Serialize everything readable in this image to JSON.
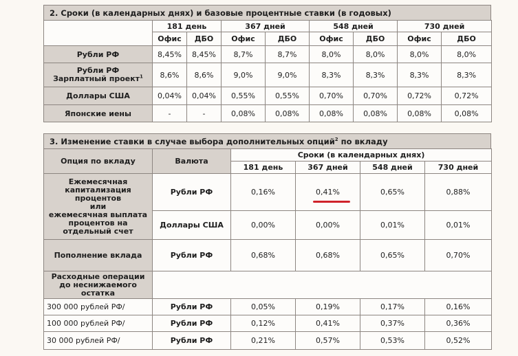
{
  "section2": {
    "title": "2. Сроки (в календарных днях) и базовые процентные ставки (в годовых)",
    "periods": [
      "181 день",
      "367 дней",
      "548 дней",
      "730 дней"
    ],
    "channels": [
      "Офис",
      "ДБО"
    ],
    "rows": [
      {
        "currency_lines": [
          "Рубли РФ"
        ],
        "rates": [
          "8,45%",
          "8,45%",
          "8,7%",
          "8,7%",
          "8,0%",
          "8,0%",
          "8,0%",
          "8,0%"
        ]
      },
      {
        "currency_lines": [
          "Рубли РФ",
          "Зарплатный проект"
        ],
        "footnote": "1",
        "rates": [
          "8,6%",
          "8,6%",
          "9,0%",
          "9,0%",
          "8,3%",
          "8,3%",
          "8,3%",
          "8,3%"
        ]
      },
      {
        "currency_lines": [
          "Доллары США"
        ],
        "rates": [
          "0,04%",
          "0,04%",
          "0,55%",
          "0,55%",
          "0,70%",
          "0,70%",
          "0,72%",
          "0,72%"
        ]
      },
      {
        "currency_lines": [
          "Японские иены"
        ],
        "rates": [
          "-",
          "-",
          "0,08%",
          "0,08%",
          "0,08%",
          "0,08%",
          "0,08%",
          "0,08%"
        ]
      }
    ]
  },
  "section3": {
    "title": "3. Изменение ставки в случае выбора дополнительных опций",
    "title_sup": "2",
    "title_tail": " по вкладу",
    "head_option": "Опция по вкладу",
    "head_currency": "Валюта",
    "head_terms": "Сроки (в календарных днях)",
    "periods": [
      "181 день",
      "367 дней",
      "548 дней",
      "730 дней"
    ],
    "option1_lines": [
      "Ежемесячная",
      "капитализация",
      "процентов",
      "или",
      "ежемесячная выплата",
      "процентов на",
      "отдельный счет"
    ],
    "option1_rows": [
      {
        "currency": "Рубли РФ",
        "values": [
          "0,16%",
          "0,41%",
          "0,65%",
          "0,88%"
        ]
      },
      {
        "currency": "Доллары США",
        "values": [
          "0,00%",
          "0,00%",
          "0,01%",
          "0,01%"
        ]
      }
    ],
    "option2": {
      "label": "Пополнение вклада",
      "currency": "Рубли РФ",
      "values": [
        "0,68%",
        "0,68%",
        "0,65%",
        "0,70%"
      ]
    },
    "option3_lines": [
      "Расходные операции",
      "до неснижаемого",
      "остатка"
    ],
    "option3_rows": [
      {
        "label": "300 000 рублей РФ/",
        "currency": "Рубли РФ",
        "values": [
          "0,05%",
          "0,19%",
          "0,17%",
          "0,16%"
        ]
      },
      {
        "label": "100 000 рублей РФ/",
        "currency": "Рубли РФ",
        "values": [
          "0,12%",
          "0,41%",
          "0,37%",
          "0,36%"
        ]
      },
      {
        "label": "30 000 рублей РФ/",
        "currency": "Рубли РФ",
        "values": [
          "0,21%",
          "0,57%",
          "0,53%",
          "0,52%"
        ]
      }
    ]
  },
  "colors": {
    "header_bg": "#d8d2cc",
    "border": "#8c8580",
    "highlight": "#d0232a"
  }
}
